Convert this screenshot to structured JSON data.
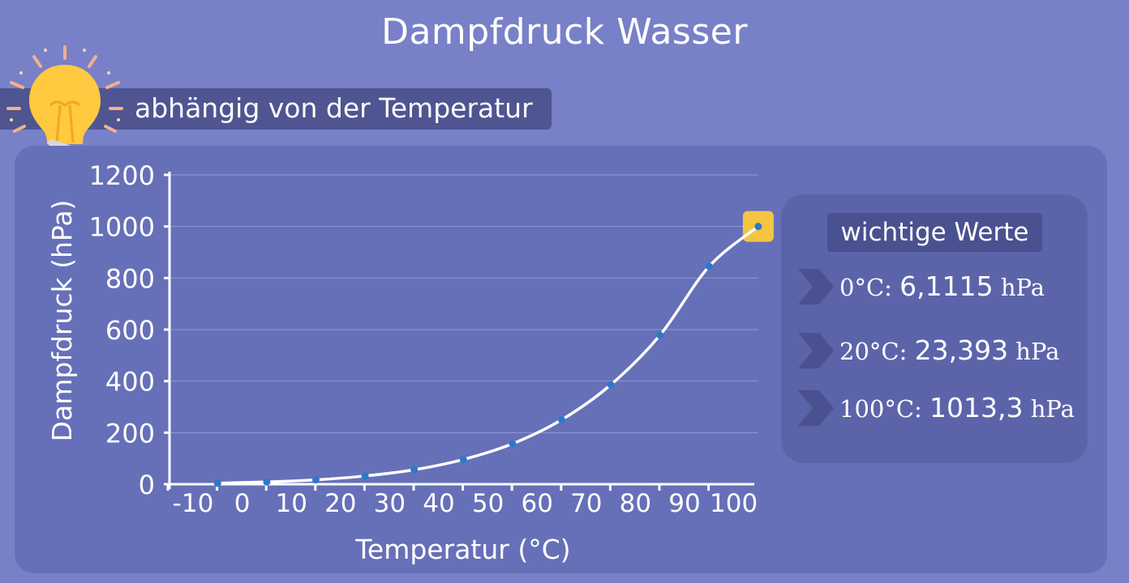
{
  "header": {
    "title": "Dampfdruck Wasser",
    "subtitle": "abhängig von der Temperatur"
  },
  "colors": {
    "background": "#7880c8",
    "panel": "#6670b8",
    "curve": "#ffffff",
    "points": "#2e78c8",
    "highlight": "#f4c543",
    "bulb": "#ffc940"
  },
  "icons": {
    "idea": "light-bulb-icon",
    "bullet": "chevron-right-icon"
  },
  "chart_data": {
    "type": "line",
    "title": "",
    "xlabel": "Temperatur (°C)",
    "ylabel": "Dampfdruck (hPa)",
    "xlim": [
      -10,
      100
    ],
    "ylim": [
      0,
      1200
    ],
    "x_ticks": [
      -10,
      0,
      10,
      20,
      30,
      40,
      50,
      60,
      70,
      80,
      90,
      100
    ],
    "y_ticks": [
      0,
      200,
      400,
      600,
      800,
      1000,
      1200
    ],
    "grid": true,
    "series": [
      {
        "x": [
          -5,
          5,
          15,
          25,
          35,
          45,
          55,
          65,
          75,
          85,
          95,
          105
        ],
        "y": [
          4,
          9,
          17,
          32,
          56,
          96,
          157,
          250,
          386,
          578,
          845,
          1000
        ]
      }
    ],
    "highlight_point": {
      "x": 105,
      "y": 1000
    }
  },
  "values_panel": {
    "title": "wichtige Werte",
    "items": [
      {
        "temp": "0°C:",
        "value": "6,1115",
        "unit": "hPa"
      },
      {
        "temp": "20°C:",
        "value": "23,393",
        "unit": "hPa"
      },
      {
        "temp": "100°C:",
        "value": "1013,3",
        "unit": "hPa"
      }
    ]
  }
}
